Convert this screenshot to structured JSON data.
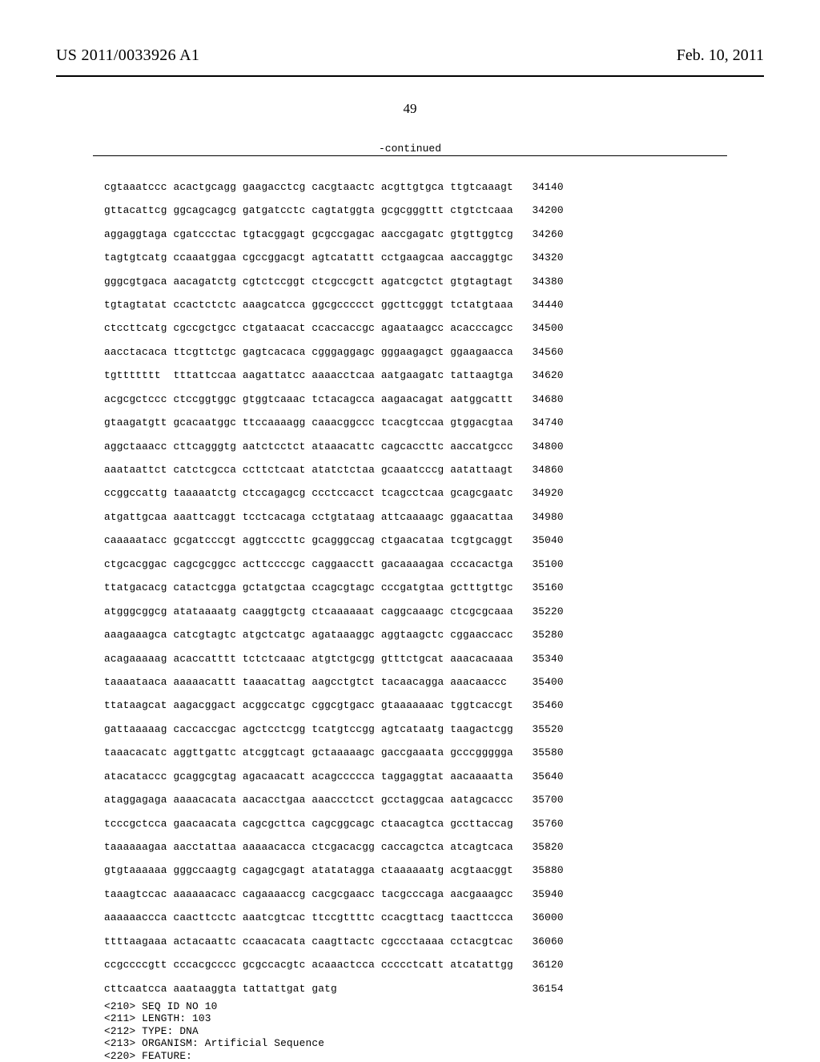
{
  "header": {
    "pub_number": "US 2011/0033926 A1",
    "pub_date": "Feb. 10, 2011",
    "page_number": "49",
    "continued_label": "-continued"
  },
  "sequence": {
    "rows": [
      {
        "g": [
          "cgtaaatccc",
          "acactgcagg",
          "gaagacctcg",
          "cacgtaactc",
          "acgttgtgca",
          "ttgtcaaagt"
        ],
        "n": "34140"
      },
      {
        "g": [
          "gttacattcg",
          "ggcagcagcg",
          "gatgatcctc",
          "cagtatggta",
          "gcgcgggttt",
          "ctgtctcaaa"
        ],
        "n": "34200"
      },
      {
        "g": [
          "aggaggtaga",
          "cgatccctac",
          "tgtacggagt",
          "gcgccgagac",
          "aaccgagatc",
          "gtgttggtcg"
        ],
        "n": "34260"
      },
      {
        "g": [
          "tagtgtcatg",
          "ccaaatggaa",
          "cgccggacgt",
          "agtcatattt",
          "cctgaagcaa",
          "aaccaggtgc"
        ],
        "n": "34320"
      },
      {
        "g": [
          "gggcgtgaca",
          "aacagatctg",
          "cgtctccggt",
          "ctcgccgctt",
          "agatcgctct",
          "gtgtagtagt"
        ],
        "n": "34380"
      },
      {
        "g": [
          "tgtagtatat",
          "ccactctctc",
          "aaagcatcca",
          "ggcgccccct",
          "ggcttcgggt",
          "tctatgtaaa"
        ],
        "n": "34440"
      },
      {
        "g": [
          "ctccttcatg",
          "cgccgctgcc",
          "ctgataacat",
          "ccaccaccgc",
          "agaataagcc",
          "acacccagcc"
        ],
        "n": "34500"
      },
      {
        "g": [
          "aacctacaca",
          "ttcgttctgc",
          "gagtcacaca",
          "cgggaggagc",
          "gggaagagct",
          "ggaagaacca"
        ],
        "n": "34560"
      },
      {
        "g": [
          "tgttttttt",
          "tttattccaa",
          "aagattatcc",
          "aaaacctcaa",
          "aatgaagatc",
          "tattaagtga"
        ],
        "n": "34620"
      },
      {
        "g": [
          "acgcgctccc",
          "ctccggtggc",
          "gtggtcaaac",
          "tctacagcca",
          "aagaacagat",
          "aatggcattt"
        ],
        "n": "34680"
      },
      {
        "g": [
          "gtaagatgtt",
          "gcacaatggc",
          "ttccaaaagg",
          "caaacggccc",
          "tcacgtccaa",
          "gtggacgtaa"
        ],
        "n": "34740"
      },
      {
        "g": [
          "aggctaaacc",
          "cttcagggtg",
          "aatctcctct",
          "ataaacattc",
          "cagcaccttc",
          "aaccatgccc"
        ],
        "n": "34800"
      },
      {
        "g": [
          "aaataattct",
          "catctcgcca",
          "ccttctcaat",
          "atatctctaa",
          "gcaaatcccg",
          "aatattaagt"
        ],
        "n": "34860"
      },
      {
        "g": [
          "ccggccattg",
          "taaaaatctg",
          "ctccagagcg",
          "ccctccacct",
          "tcagcctcaa",
          "gcagcgaatc"
        ],
        "n": "34920"
      },
      {
        "g": [
          "atgattgcaa",
          "aaattcaggt",
          "tcctcacaga",
          "cctgtataag",
          "attcaaaagc",
          "ggaacattaa"
        ],
        "n": "34980"
      },
      {
        "g": [
          "caaaaatacc",
          "gcgatcccgt",
          "aggtcccttc",
          "gcagggccag",
          "ctgaacataa",
          "tcgtgcaggt"
        ],
        "n": "35040"
      },
      {
        "g": [
          "ctgcacggac",
          "cagcgcggcc",
          "acttccccgc",
          "caggaacctt",
          "gacaaaagaa",
          "cccacactga"
        ],
        "n": "35100"
      },
      {
        "g": [
          "ttatgacacg",
          "catactcgga",
          "gctatgctaa",
          "ccagcgtagc",
          "cccgatgtaa",
          "gctttgttgc"
        ],
        "n": "35160"
      },
      {
        "g": [
          "atgggcggcg",
          "atataaaatg",
          "caaggtgctg",
          "ctcaaaaaat",
          "caggcaaagc",
          "ctcgcgcaaa"
        ],
        "n": "35220"
      },
      {
        "g": [
          "aaagaaagca",
          "catcgtagtc",
          "atgctcatgc",
          "agataaaggc",
          "aggtaagctc",
          "cggaaccacc"
        ],
        "n": "35280"
      },
      {
        "g": [
          "acagaaaaag",
          "acaccatttt",
          "tctctcaaac",
          "atgtctgcgg",
          "gtttctgcat",
          "aaacacaaaa"
        ],
        "n": "35340"
      },
      {
        "g": [
          "taaaataaca",
          "aaaaacattt",
          "taaacattag",
          "aagcctgtct",
          "tacaacagga",
          "aaacaaccc"
        ],
        "n": "35400"
      },
      {
        "g": [
          "ttataagcat",
          "aagacggact",
          "acggccatgc",
          "cggcgtgacc",
          "gtaaaaaaac",
          "tggtcaccgt"
        ],
        "n": "35460"
      },
      {
        "g": [
          "gattaaaaag",
          "caccaccgac",
          "agctcctcgg",
          "tcatgtccgg",
          "agtcataatg",
          "taagactcgg"
        ],
        "n": "35520"
      },
      {
        "g": [
          "taaacacatc",
          "aggttgattc",
          "atcggtcagt",
          "gctaaaaagc",
          "gaccgaaata",
          "gcccggggga"
        ],
        "n": "35580"
      },
      {
        "g": [
          "atacataccc",
          "gcaggcgtag",
          "agacaacatt",
          "acagccccca",
          "taggaggtat",
          "aacaaaatta"
        ],
        "n": "35640"
      },
      {
        "g": [
          "ataggagaga",
          "aaaacacata",
          "aacacctgaa",
          "aaaccctcct",
          "gcctaggcaa",
          "aatagcaccc"
        ],
        "n": "35700"
      },
      {
        "g": [
          "tcccgctcca",
          "gaacaacata",
          "cagcgcttca",
          "cagcggcagc",
          "ctaacagtca",
          "gccttaccag"
        ],
        "n": "35760"
      },
      {
        "g": [
          "taaaaaagaa",
          "aacctattaa",
          "aaaaacacca",
          "ctcgacacgg",
          "caccagctca",
          "atcagtcaca"
        ],
        "n": "35820"
      },
      {
        "g": [
          "gtgtaaaaaa",
          "gggccaagtg",
          "cagagcgagt",
          "atatatagga",
          "ctaaaaaatg",
          "acgtaacggt"
        ],
        "n": "35880"
      },
      {
        "g": [
          "taaagtccac",
          "aaaaaacacc",
          "cagaaaaccg",
          "cacgcgaacc",
          "tacgcccaga",
          "aacgaaagcc"
        ],
        "n": "35940"
      },
      {
        "g": [
          "aaaaaaccca",
          "caacttcctc",
          "aaatcgtcac",
          "ttccgttttc",
          "ccacgttacg",
          "taacttccca"
        ],
        "n": "36000"
      },
      {
        "g": [
          "ttttaagaaa",
          "actacaattc",
          "ccaacacata",
          "caagttactc",
          "cgccctaaaa",
          "cctacgtcac"
        ],
        "n": "36060"
      },
      {
        "g": [
          "ccgccccgtt",
          "cccacgcccc",
          "gcgccacgtc",
          "acaaactcca",
          "ccccctcatt",
          "atcatattgg"
        ],
        "n": "36120"
      },
      {
        "g": [
          "cttcaatcca",
          "aaataaggta",
          "tattattgat",
          "gatg",
          "",
          ""
        ],
        "n": "36154"
      }
    ]
  },
  "metadata": {
    "lines": [
      "<210> SEQ ID NO 10",
      "<211> LENGTH: 103",
      "<212> TYPE: DNA",
      "<213> ORGANISM: Artificial Sequence",
      "<220> FEATURE:"
    ]
  },
  "layout": {
    "group_col_width_ch": 11,
    "number_col_start_ch": 68
  }
}
